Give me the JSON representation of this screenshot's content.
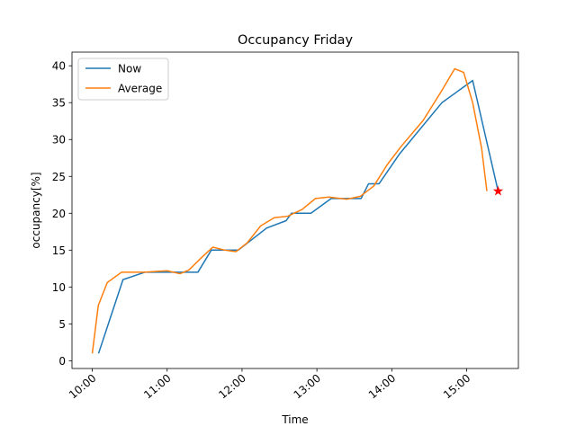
{
  "chart_data": {
    "type": "line",
    "title": "Occupancy Friday",
    "xlabel": "Time",
    "ylabel": "occupancy[%]",
    "xlim": [
      9.729,
      15.691
    ],
    "ylim": [
      -1.05,
      41.85
    ],
    "xticks": [
      {
        "value": 10,
        "label": "10:00"
      },
      {
        "value": 11,
        "label": "11:00"
      },
      {
        "value": 12,
        "label": "12:00"
      },
      {
        "value": 13,
        "label": "13:00"
      },
      {
        "value": 14,
        "label": "14:00"
      },
      {
        "value": 15,
        "label": "15:00"
      }
    ],
    "yticks": [
      0,
      5,
      10,
      15,
      20,
      25,
      30,
      35,
      40
    ],
    "legend": "upper left",
    "series": [
      {
        "name": "Now",
        "color": "#1f77b4",
        "x": [
          10.084,
          10.41,
          10.7,
          11.0,
          11.41,
          11.59,
          11.95,
          12.33,
          12.59,
          12.66,
          12.92,
          13.19,
          13.59,
          13.69,
          13.83,
          14.1,
          14.67,
          15.08,
          15.42
        ],
        "values": [
          1,
          11,
          12,
          12,
          12,
          15,
          15,
          18,
          19,
          20,
          20,
          22,
          22,
          24,
          24,
          28,
          35,
          38,
          23
        ]
      },
      {
        "name": "Average",
        "color": "#ff7f0e",
        "x": [
          10.0,
          10.08,
          10.2,
          10.39,
          10.69,
          11.0,
          11.17,
          11.29,
          11.47,
          11.61,
          11.77,
          11.92,
          12.07,
          12.25,
          12.43,
          12.61,
          12.8,
          12.98,
          13.16,
          13.4,
          13.58,
          13.76,
          13.94,
          14.12,
          14.42,
          14.66,
          14.84,
          14.96,
          15.08,
          15.2,
          15.27
        ],
        "values": [
          1,
          7.5,
          10.6,
          12,
          12,
          12.2,
          11.8,
          12.3,
          14.1,
          15.4,
          15.0,
          14.8,
          16,
          18.3,
          19.4,
          19.6,
          20.5,
          22,
          22.2,
          21.9,
          22.3,
          23.7,
          26.6,
          29,
          32.6,
          36.5,
          39.6,
          39.1,
          35,
          28.8,
          23
        ]
      }
    ],
    "marker": {
      "x": 15.42,
      "y": 23,
      "color": "red"
    }
  }
}
